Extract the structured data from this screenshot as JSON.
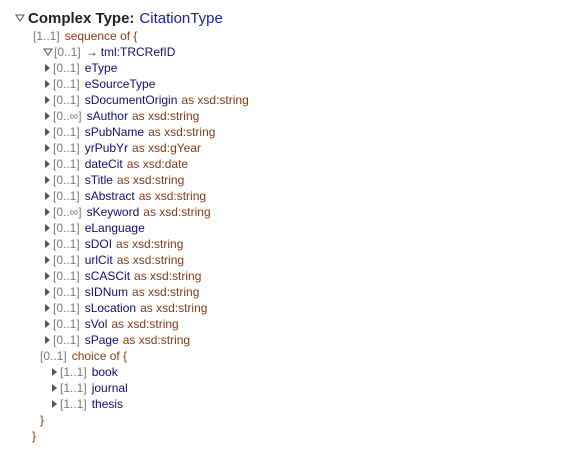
{
  "header": {
    "title": "Complex Type:",
    "type": "CitationType"
  },
  "sequence": {
    "card": "[1..1]",
    "label": "sequence of {"
  },
  "ref": {
    "card": "[0..1]",
    "arrow": "→",
    "name": "tml:TRCRefID"
  },
  "items": [
    {
      "card": "[0..1]",
      "name": "eType",
      "type": ""
    },
    {
      "card": "[0..1]",
      "name": "eSourceType",
      "type": ""
    },
    {
      "card": "[0..1]",
      "name": "sDocumentOrigin",
      "type": "as xsd:string"
    },
    {
      "card": "[0..∞]",
      "name": "sAuthor",
      "type": "as xsd:string"
    },
    {
      "card": "[0..1]",
      "name": "sPubName",
      "type": "as xsd:string"
    },
    {
      "card": "[0..1]",
      "name": "yrPubYr",
      "type": "as xsd:gYear"
    },
    {
      "card": "[0..1]",
      "name": "dateCit",
      "type": "as xsd:date"
    },
    {
      "card": "[0..1]",
      "name": "sTitle",
      "type": "as xsd:string"
    },
    {
      "card": "[0..1]",
      "name": "sAbstract",
      "type": "as xsd:string"
    },
    {
      "card": "[0..∞]",
      "name": "sKeyword",
      "type": "as xsd:string"
    },
    {
      "card": "[0..1]",
      "name": "eLanguage",
      "type": ""
    },
    {
      "card": "[0..1]",
      "name": "sDOI",
      "type": "as xsd:string"
    },
    {
      "card": "[0..1]",
      "name": "urlCit",
      "type": "as xsd:string"
    },
    {
      "card": "[0..1]",
      "name": "sCASCit",
      "type": "as xsd:string"
    },
    {
      "card": "[0..1]",
      "name": "sIDNum",
      "type": "as xsd:string"
    },
    {
      "card": "[0..1]",
      "name": "sLocation",
      "type": "as xsd:string"
    },
    {
      "card": "[0..1]",
      "name": "sVol",
      "type": "as xsd:string"
    },
    {
      "card": "[0..1]",
      "name": "sPage",
      "type": "as xsd:string"
    }
  ],
  "choice": {
    "card": "[0..1]",
    "label": "choice of {"
  },
  "choice_items": [
    {
      "card": "[1..1]",
      "name": "book"
    },
    {
      "card": "[1..1]",
      "name": "journal"
    },
    {
      "card": "[1..1]",
      "name": "thesis"
    }
  ],
  "close_inner": "}",
  "close_outer": "}"
}
